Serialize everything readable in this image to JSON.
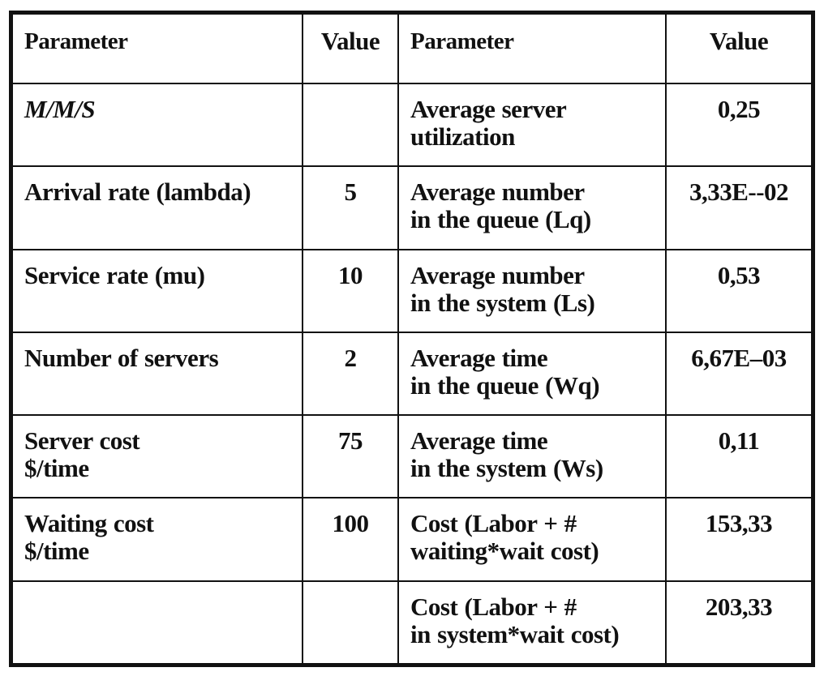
{
  "headers": {
    "left_parameter": "Parameter",
    "left_value": "Value",
    "right_parameter": "Parameter",
    "right_value": "Value"
  },
  "rows": [
    {
      "left": [
        "M/M/S"
      ],
      "left_value": "",
      "right": [
        "Average server",
        "utilization"
      ],
      "right_value": "0,25"
    },
    {
      "left": [
        "Arrival rate (lambda)"
      ],
      "left_value": "5",
      "right": [
        "Average number",
        "in the queue (Lq)"
      ],
      "right_value": "3,33E--02"
    },
    {
      "left": [
        "Service rate (mu)"
      ],
      "left_value": "10",
      "right": [
        "Average number",
        "in the system (Ls)"
      ],
      "right_value": "0,53"
    },
    {
      "left": [
        "Number of servers"
      ],
      "left_value": "2",
      "right": [
        "Average time",
        "in the queue (Wq)"
      ],
      "right_value": "6,67E–03"
    },
    {
      "left": [
        "Server cost",
        "$/time"
      ],
      "left_value": "75",
      "right": [
        "Average time",
        "in the system (Ws)"
      ],
      "right_value": "0,11"
    },
    {
      "left": [
        "Waiting cost",
        "$/time"
      ],
      "left_value": "100",
      "right": [
        "Cost (Labor + #",
        "waiting*wait cost)"
      ],
      "right_value": "153,33"
    },
    {
      "left": [
        ""
      ],
      "left_value": "",
      "right": [
        "Cost (Labor + #",
        "in system*wait cost)"
      ],
      "right_value": "203,33"
    }
  ]
}
